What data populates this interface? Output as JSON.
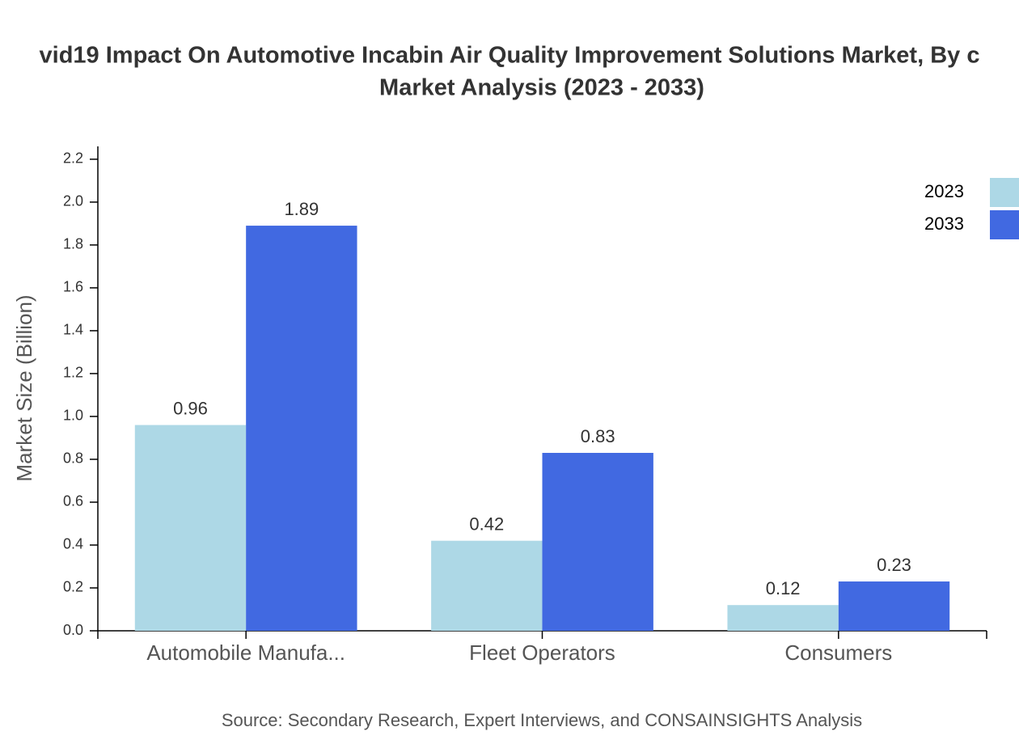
{
  "chart_data": {
    "type": "bar",
    "title_lines": [
      "vid19 Impact On Automotive Incabin Air Quality Improvement Solutions Market, By c",
      "Market Analysis (2023 - 2033)"
    ],
    "y_label": "Market Size (Billion)",
    "source": "Source: Secondary Research, Expert Interviews, and CONSAINSIGHTS Analysis",
    "categories": [
      "Automobile Manufa...",
      "Fleet Operators",
      "Consumers"
    ],
    "series": [
      {
        "name": "2023",
        "color": "#add8e6",
        "values": [
          0.96,
          0.42,
          0.12
        ]
      },
      {
        "name": "2033",
        "color": "#4169e1",
        "values": [
          1.89,
          0.83,
          0.23
        ]
      }
    ],
    "ylim": [
      0,
      2.26
    ],
    "yticks": [
      {
        "value": 0,
        "label": "0.0"
      },
      0.2,
      0.4,
      0.6,
      0.8,
      {
        "value": 1,
        "label": "1.0"
      },
      1.2,
      1.4,
      1.6,
      1.8,
      {
        "value": 2,
        "label": "2.0"
      },
      2.2
    ],
    "legend": "top-right"
  }
}
